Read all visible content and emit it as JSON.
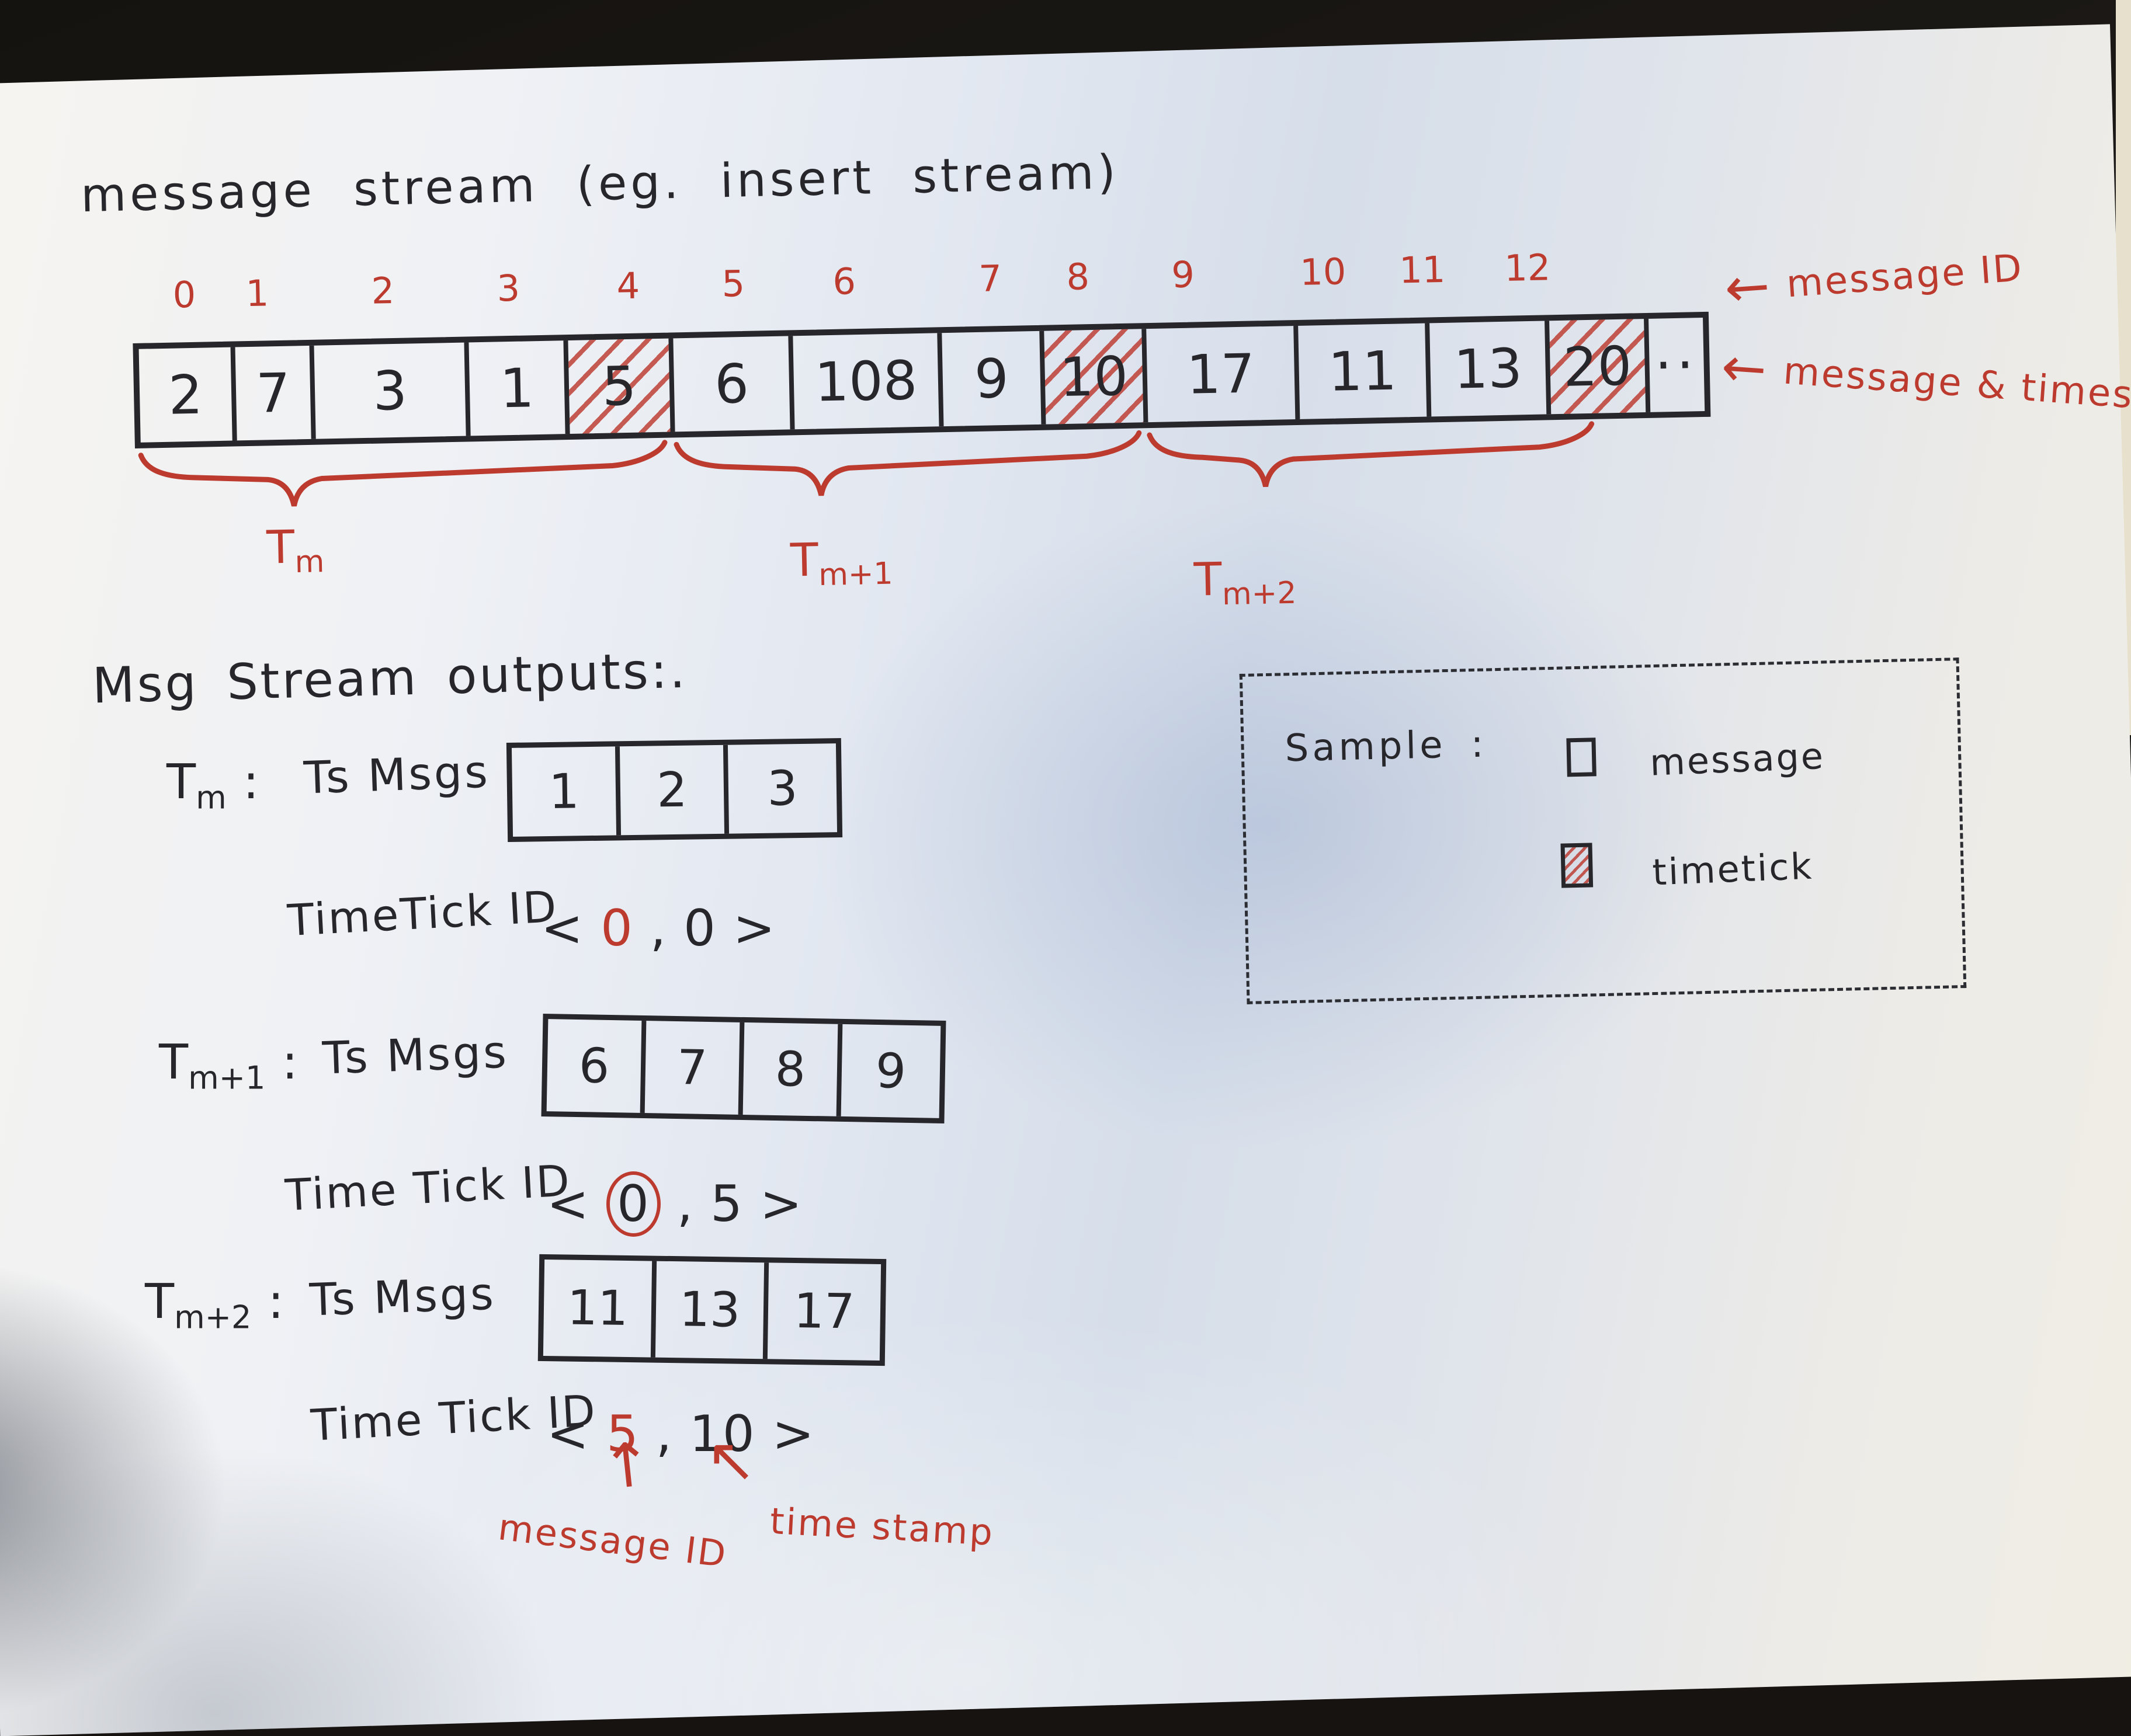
{
  "title": "message stream (eg. insert stream)",
  "colors": {
    "ink": "#26262b",
    "red": "#bc3a2e",
    "paper": "#e9edf3"
  },
  "stream": {
    "indices": [
      "0",
      "1",
      "2",
      "3",
      "4",
      "5",
      "6",
      "7",
      "8",
      "9",
      "10",
      "11",
      "12"
    ],
    "cells": [
      {
        "value": "2",
        "timetick": false
      },
      {
        "value": "7",
        "timetick": false
      },
      {
        "value": "3",
        "timetick": false
      },
      {
        "value": "1",
        "timetick": false
      },
      {
        "value": "5",
        "timetick": true
      },
      {
        "value": "6",
        "timetick": false
      },
      {
        "value": "108",
        "timetick": false
      },
      {
        "value": "9",
        "timetick": false
      },
      {
        "value": "10",
        "timetick": true
      },
      {
        "value": "17",
        "timetick": false
      },
      {
        "value": "11",
        "timetick": false
      },
      {
        "value": "13",
        "timetick": false
      },
      {
        "value": "20",
        "timetick": true
      },
      {
        "value": "··",
        "timetick": false
      }
    ],
    "braces": [
      {
        "base": "T",
        "sub": "m"
      },
      {
        "base": "T",
        "sub": "m+1"
      },
      {
        "base": "T",
        "sub": "m+2"
      }
    ],
    "side_notes": [
      {
        "arrow": "←",
        "text": "message ID"
      },
      {
        "arrow": "←",
        "text": "message & timestamp"
      }
    ]
  },
  "outputs": {
    "heading": "Msg Stream outputs:.",
    "rows": [
      {
        "name": {
          "base": "T",
          "sub": "m"
        },
        "colon": ":",
        "field": "Ts Msgs",
        "msgs": [
          "1",
          "2",
          "3"
        ],
        "tick_label": "TimeTick ID",
        "tick": {
          "open": "<",
          "message_id": "0",
          "comma": ",",
          "timestamp": "0",
          "close": ">",
          "id_mark": "red"
        }
      },
      {
        "name": {
          "base": "T",
          "sub": "m+1"
        },
        "colon": ":",
        "field": "Ts Msgs",
        "msgs": [
          "6",
          "7",
          "8",
          "9"
        ],
        "tick_label": "Time Tick ID",
        "tick": {
          "open": "<",
          "message_id": "0",
          "comma": ",",
          "timestamp": "5",
          "close": ">",
          "id_mark": "red-circle"
        }
      },
      {
        "name": {
          "base": "T",
          "sub": "m+2"
        },
        "colon": ":",
        "field": "Ts Msgs",
        "msgs": [
          "11",
          "13",
          "17"
        ],
        "tick_label": "Time Tick ID",
        "tick": {
          "open": "<",
          "message_id": "5",
          "comma": ",",
          "timestamp": "10",
          "close": ">",
          "id_mark": "red"
        }
      }
    ],
    "pointers": {
      "up_arrow": "↑",
      "diag_arrow": "↖",
      "message_id_label": "message ID",
      "timestamp_label": "time stamp"
    }
  },
  "legend": {
    "heading": "Sample :",
    "items": [
      {
        "icon": "message-box-icon",
        "label": "message",
        "timetick": false
      },
      {
        "icon": "timetick-box-icon",
        "label": "timetick",
        "timetick": true
      }
    ]
  }
}
